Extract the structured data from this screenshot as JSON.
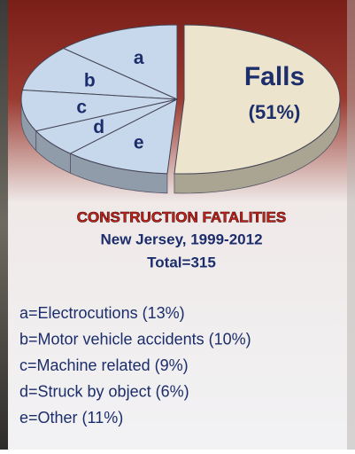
{
  "chart_data": {
    "type": "pie",
    "title": "CONSTRUCTION FATALITIES",
    "subtitle": "New Jersey, 1999-2012",
    "annotation": "Total=315",
    "categories": [
      "Falls",
      "a",
      "b",
      "c",
      "d",
      "e"
    ],
    "values": [
      51,
      13,
      10,
      9,
      6,
      11
    ],
    "value_labels": [
      "(51%)",
      null,
      null,
      null,
      null,
      null
    ],
    "colors": [
      "#ece4cc",
      "#c8d8ec",
      "#c8d8ec",
      "#c8d8ec",
      "#c8d8ec",
      "#c8d8ec"
    ],
    "legend": [
      "a=Electrocutions (13%)",
      "b=Motor vehicle accidents (10%)",
      "c=Machine related (9%)",
      "d=Struck by object (6%)",
      "e=Other (11%)"
    ]
  }
}
